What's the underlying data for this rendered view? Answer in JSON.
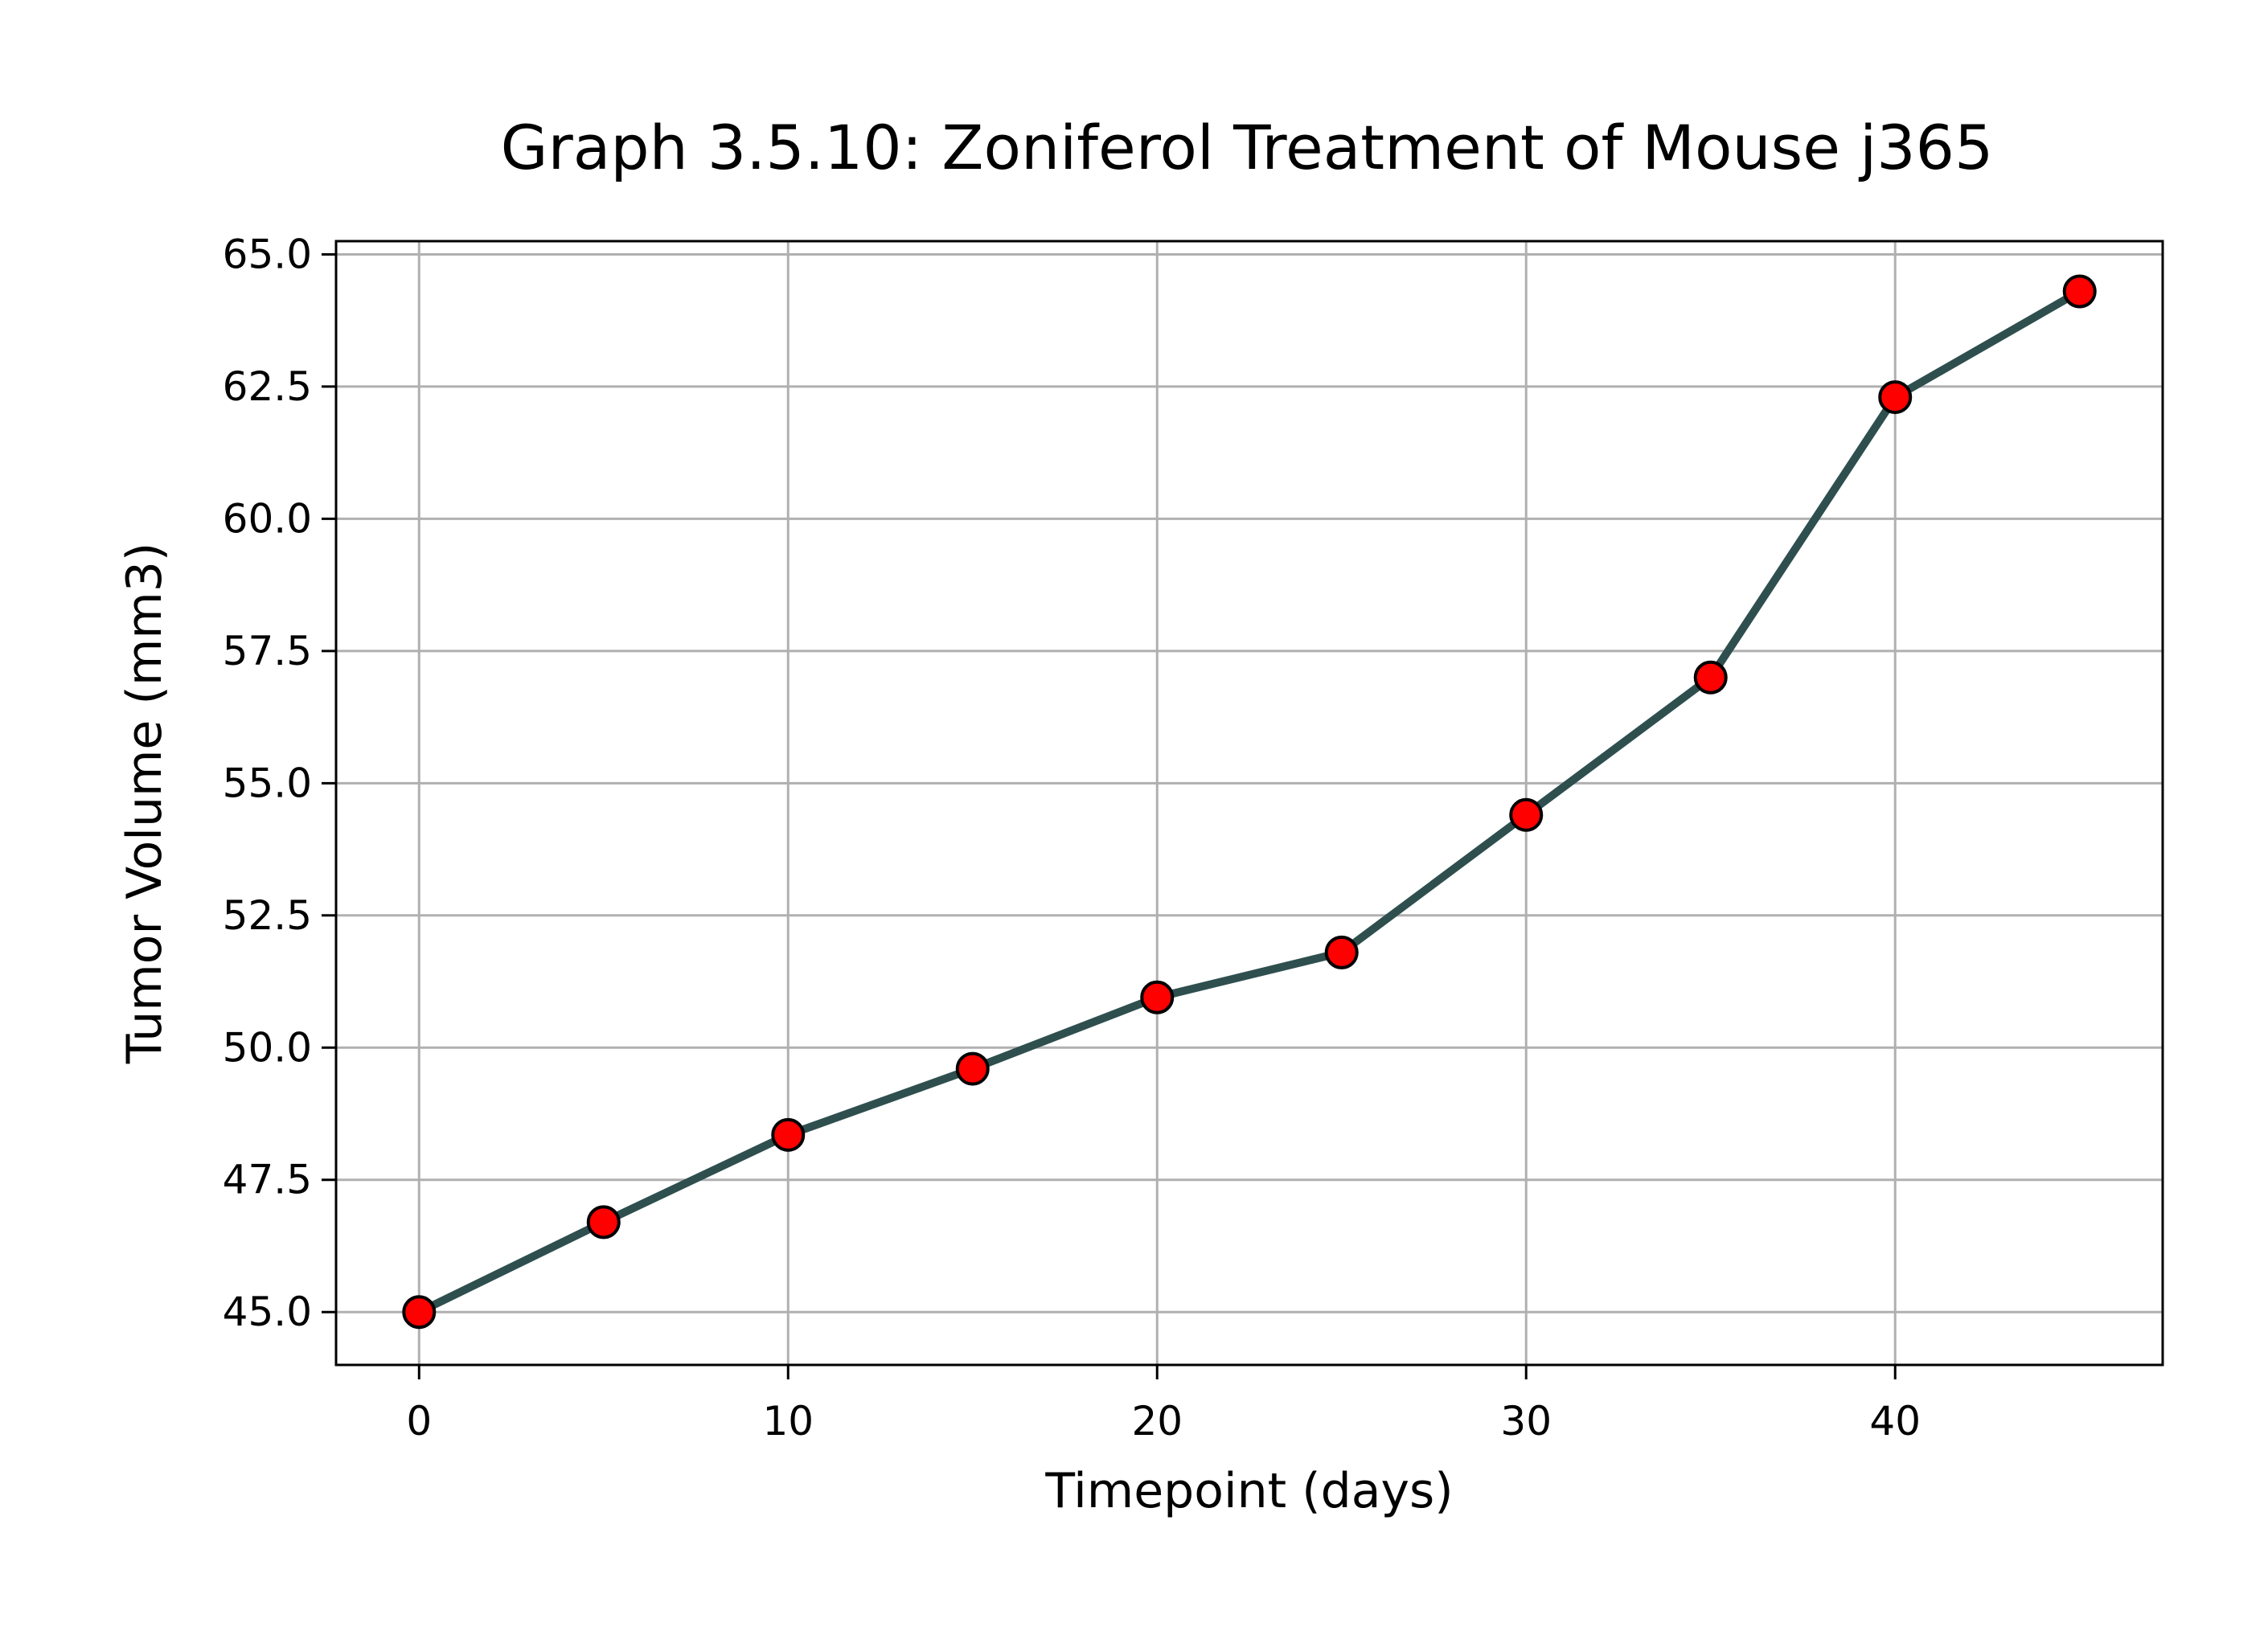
{
  "chart_data": {
    "type": "line",
    "title": "Graph 3.5.10: Zoniferol Treatment of Mouse j365",
    "xlabel": "Timepoint (days)",
    "ylabel": "Tumor Volume (mm3)",
    "x": [
      0,
      5,
      10,
      15,
      20,
      25,
      30,
      35,
      40,
      45
    ],
    "series": [
      {
        "values": [
          45.0,
          46.7,
          48.35,
          49.6,
          50.95,
          51.8,
          54.4,
          57.0,
          62.3,
          64.3
        ],
        "line_color": "#2f4f4f",
        "marker_face_color": "#ff0000",
        "marker_edge_color": "#000000"
      }
    ],
    "xlim": [
      -2.25,
      47.25
    ],
    "ylim": [
      44.0,
      65.25
    ],
    "x_ticks": [
      0,
      10,
      20,
      30,
      40
    ],
    "x_tick_labels": [
      "0",
      "10",
      "20",
      "30",
      "40"
    ],
    "y_ticks": [
      45.0,
      47.5,
      50.0,
      52.5,
      55.0,
      57.5,
      60.0,
      62.5,
      65.0
    ],
    "y_tick_labels": [
      "45.0",
      "47.5",
      "50.0",
      "52.5",
      "55.0",
      "57.5",
      "60.0",
      "62.5",
      "65.0"
    ],
    "grid": true,
    "grid_color": "#b0b0b0"
  }
}
